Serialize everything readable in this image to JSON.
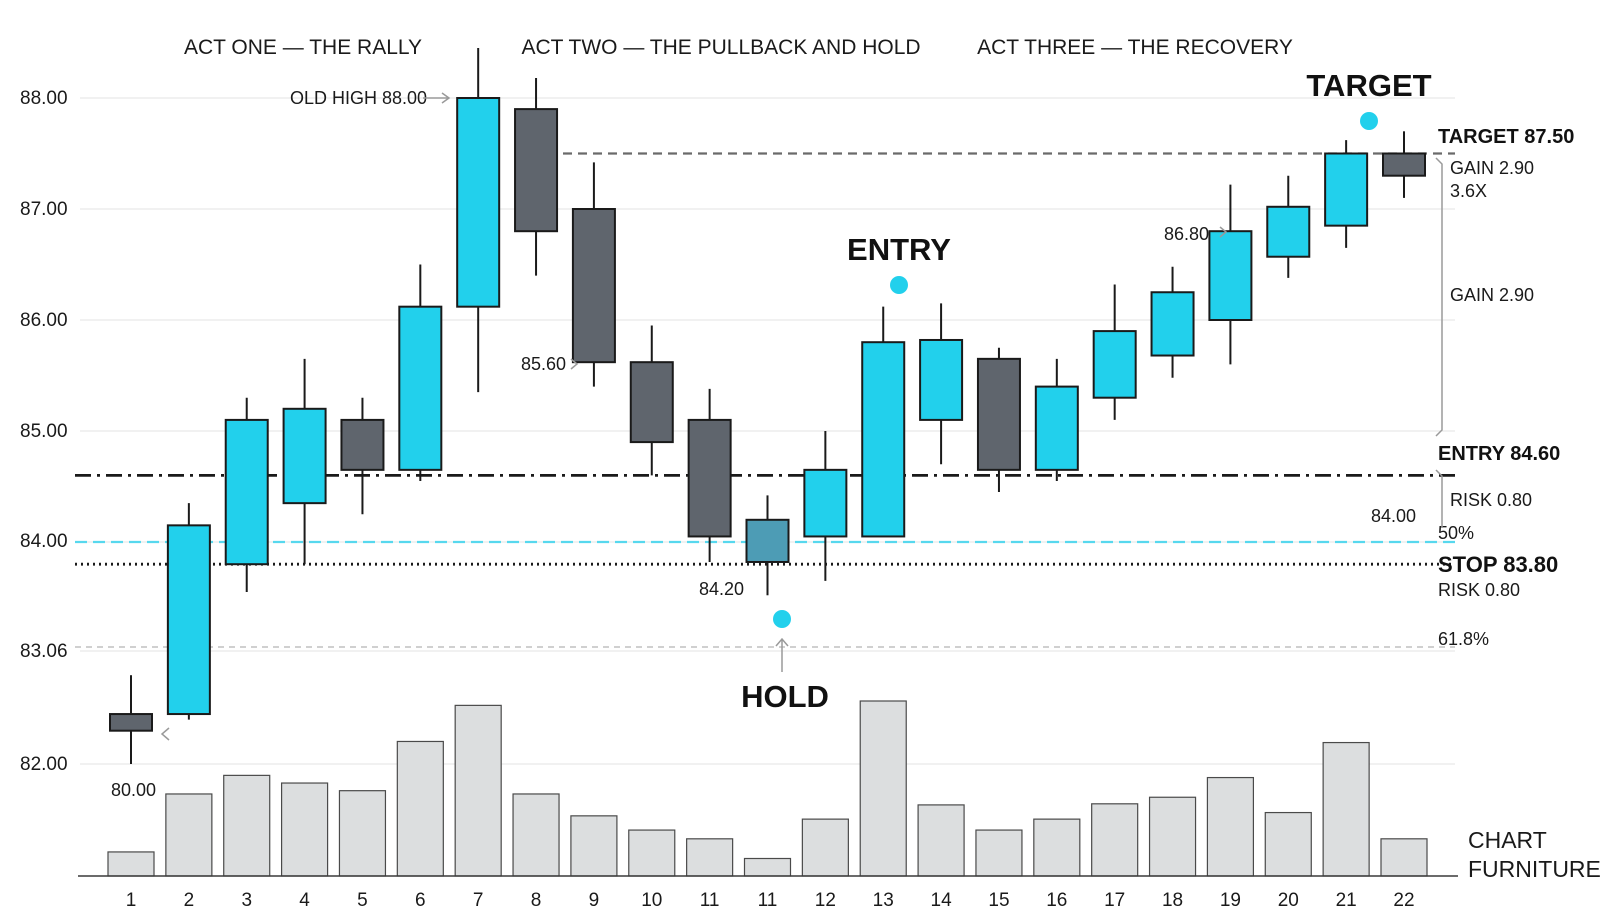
{
  "chart_data": {
    "type": "candlestick",
    "categories": [
      "1",
      "2",
      "3",
      "4",
      "5",
      "6",
      "7",
      "8",
      "9",
      "10",
      "11",
      "11",
      "12",
      "13",
      "14",
      "15",
      "16",
      "17",
      "18",
      "19",
      "20",
      "21",
      "22"
    ],
    "y_ticks": [
      "88.00",
      "87.00",
      "86.00",
      "85.00",
      "84.00",
      "83.06",
      "82.00"
    ],
    "ylim": [
      81.0,
      88.45
    ],
    "candles": [
      {
        "o": 82.3,
        "h": 82.8,
        "l": 82.0,
        "c": 82.45,
        "color": "#5f656d"
      },
      {
        "o": 82.45,
        "h": 84.35,
        "l": 82.4,
        "c": 84.15,
        "color": "#22d0ec"
      },
      {
        "o": 83.8,
        "h": 85.3,
        "l": 83.55,
        "c": 85.1,
        "color": "#22d0ec"
      },
      {
        "o": 84.35,
        "h": 85.65,
        "l": 83.8,
        "c": 85.2,
        "color": "#22d0ec"
      },
      {
        "o": 85.1,
        "h": 85.3,
        "l": 84.25,
        "c": 84.65,
        "color": "#5f656d"
      },
      {
        "o": 84.65,
        "h": 86.5,
        "l": 84.55,
        "c": 86.12,
        "color": "#22d0ec"
      },
      {
        "o": 86.12,
        "h": 88.45,
        "l": 85.35,
        "c": 88.0,
        "color": "#22d0ec"
      },
      {
        "o": 87.9,
        "h": 88.18,
        "l": 86.4,
        "c": 86.8,
        "color": "#5f656d"
      },
      {
        "o": 87.0,
        "h": 87.42,
        "l": 85.4,
        "c": 85.62,
        "color": "#5f656d"
      },
      {
        "o": 85.62,
        "h": 85.95,
        "l": 84.6,
        "c": 84.9,
        "color": "#5f656d"
      },
      {
        "o": 85.1,
        "h": 85.38,
        "l": 83.82,
        "c": 84.05,
        "color": "#5f656d"
      },
      {
        "o": 84.2,
        "h": 84.42,
        "l": 83.52,
        "c": 83.82,
        "color": "#4d9cb5"
      },
      {
        "o": 84.05,
        "h": 85.0,
        "l": 83.65,
        "c": 84.65,
        "color": "#22d0ec"
      },
      {
        "o": 84.05,
        "h": 86.12,
        "l": 84.05,
        "c": 85.8,
        "color": "#22d0ec"
      },
      {
        "o": 85.1,
        "h": 86.15,
        "l": 84.7,
        "c": 85.82,
        "color": "#22d0ec"
      },
      {
        "o": 85.65,
        "h": 85.75,
        "l": 84.45,
        "c": 84.65,
        "color": "#5f656d"
      },
      {
        "o": 84.65,
        "h": 85.65,
        "l": 84.55,
        "c": 85.4,
        "color": "#22d0ec"
      },
      {
        "o": 85.3,
        "h": 86.32,
        "l": 85.1,
        "c": 85.9,
        "color": "#22d0ec"
      },
      {
        "o": 85.68,
        "h": 86.48,
        "l": 85.48,
        "c": 86.25,
        "color": "#22d0ec"
      },
      {
        "o": 86.0,
        "h": 87.22,
        "l": 85.6,
        "c": 86.8,
        "color": "#22d0ec"
      },
      {
        "o": 86.57,
        "h": 87.3,
        "l": 86.38,
        "c": 87.02,
        "color": "#22d0ec"
      },
      {
        "o": 86.85,
        "h": 87.62,
        "l": 86.65,
        "c": 87.5,
        "color": "#22d0ec"
      },
      {
        "o": 87.3,
        "h": 87.7,
        "l": 87.1,
        "c": 87.5,
        "color": "#5f656d"
      }
    ],
    "volume": [
      0.22,
      0.75,
      0.92,
      0.85,
      0.78,
      1.23,
      1.56,
      0.75,
      0.55,
      0.42,
      0.34,
      0.16,
      0.52,
      1.6,
      0.65,
      0.42,
      0.52,
      0.66,
      0.72,
      0.9,
      0.58,
      1.22,
      0.34
    ],
    "volume_max": 1.6,
    "act_labels": [
      "ACT ONE — THE RALLY",
      "ACT TWO — THE PULLBACK AND HOLD",
      "ACT THREE — THE RECOVERY"
    ],
    "levels": [
      {
        "key": "target",
        "value": 87.5,
        "label": "TARGET 87.50",
        "style": "dashed-gray"
      },
      {
        "key": "entry",
        "value": 84.6,
        "label": "ENTRY 84.60",
        "style": "dashdot-black"
      },
      {
        "key": "fib50",
        "value": 84.0,
        "label": "50%",
        "style": "dashed-cyan"
      },
      {
        "key": "stop",
        "value": 83.8,
        "label": "STOP 83.80",
        "style": "dotted-black"
      },
      {
        "key": "fib618",
        "value": 83.06,
        "label": "61.8%",
        "style": "dashed-lightgray"
      }
    ],
    "side_notes": {
      "gain_top": "GAIN 2.90",
      "ratio": "3.6X",
      "gain_mid": "GAIN 2.90",
      "risk_top": "RISK 0.80",
      "risk_bottom": "RISK 0.80",
      "fib50_value": "84.00"
    },
    "annotations": {
      "old_high": "OLD HIGH 88.00",
      "low_80": "80.00",
      "p8560": "85.60",
      "p8420": "84.20",
      "p8680": "86.80"
    },
    "markers": {
      "entry": "ENTRY",
      "hold": "HOLD",
      "target": "TARGET"
    },
    "marker_color": "#22d0ec",
    "furniture_label": [
      "CHART",
      "FURNITURE"
    ]
  }
}
